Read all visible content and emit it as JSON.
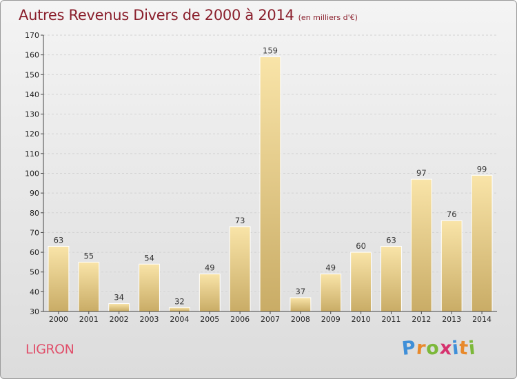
{
  "title": "Autres Revenus Divers de 2000 à 2014",
  "subtitle": "(en milliers d'€)",
  "commune": "LIGRON",
  "logo": {
    "letters": [
      "P",
      "r",
      "o",
      "x",
      "i",
      "t",
      "i"
    ],
    "colors": [
      "#3f8fd8",
      "#e8892b",
      "#7cb83a",
      "#d6326e",
      "#3f8fd8",
      "#e8892b",
      "#7cb83a"
    ]
  },
  "colors": {
    "bar_top": "#f9e4a8",
    "bar_bottom": "#c9ac66",
    "title": "#8a1f2c",
    "commune": "#e0506b"
  },
  "chart_data": {
    "type": "bar",
    "categories": [
      "2000",
      "2001",
      "2002",
      "2003",
      "2004",
      "2005",
      "2006",
      "2007",
      "2008",
      "2009",
      "2010",
      "2011",
      "2012",
      "2013",
      "2014"
    ],
    "values": [
      63,
      55,
      34,
      54,
      32,
      49,
      73,
      159,
      37,
      49,
      60,
      63,
      97,
      76,
      99
    ],
    "title": "Autres Revenus Divers de 2000 à 2014",
    "ylim": [
      30,
      170
    ],
    "yticks": [
      30,
      40,
      50,
      60,
      70,
      80,
      90,
      100,
      110,
      120,
      130,
      140,
      150,
      160,
      170
    ],
    "grid": true
  }
}
